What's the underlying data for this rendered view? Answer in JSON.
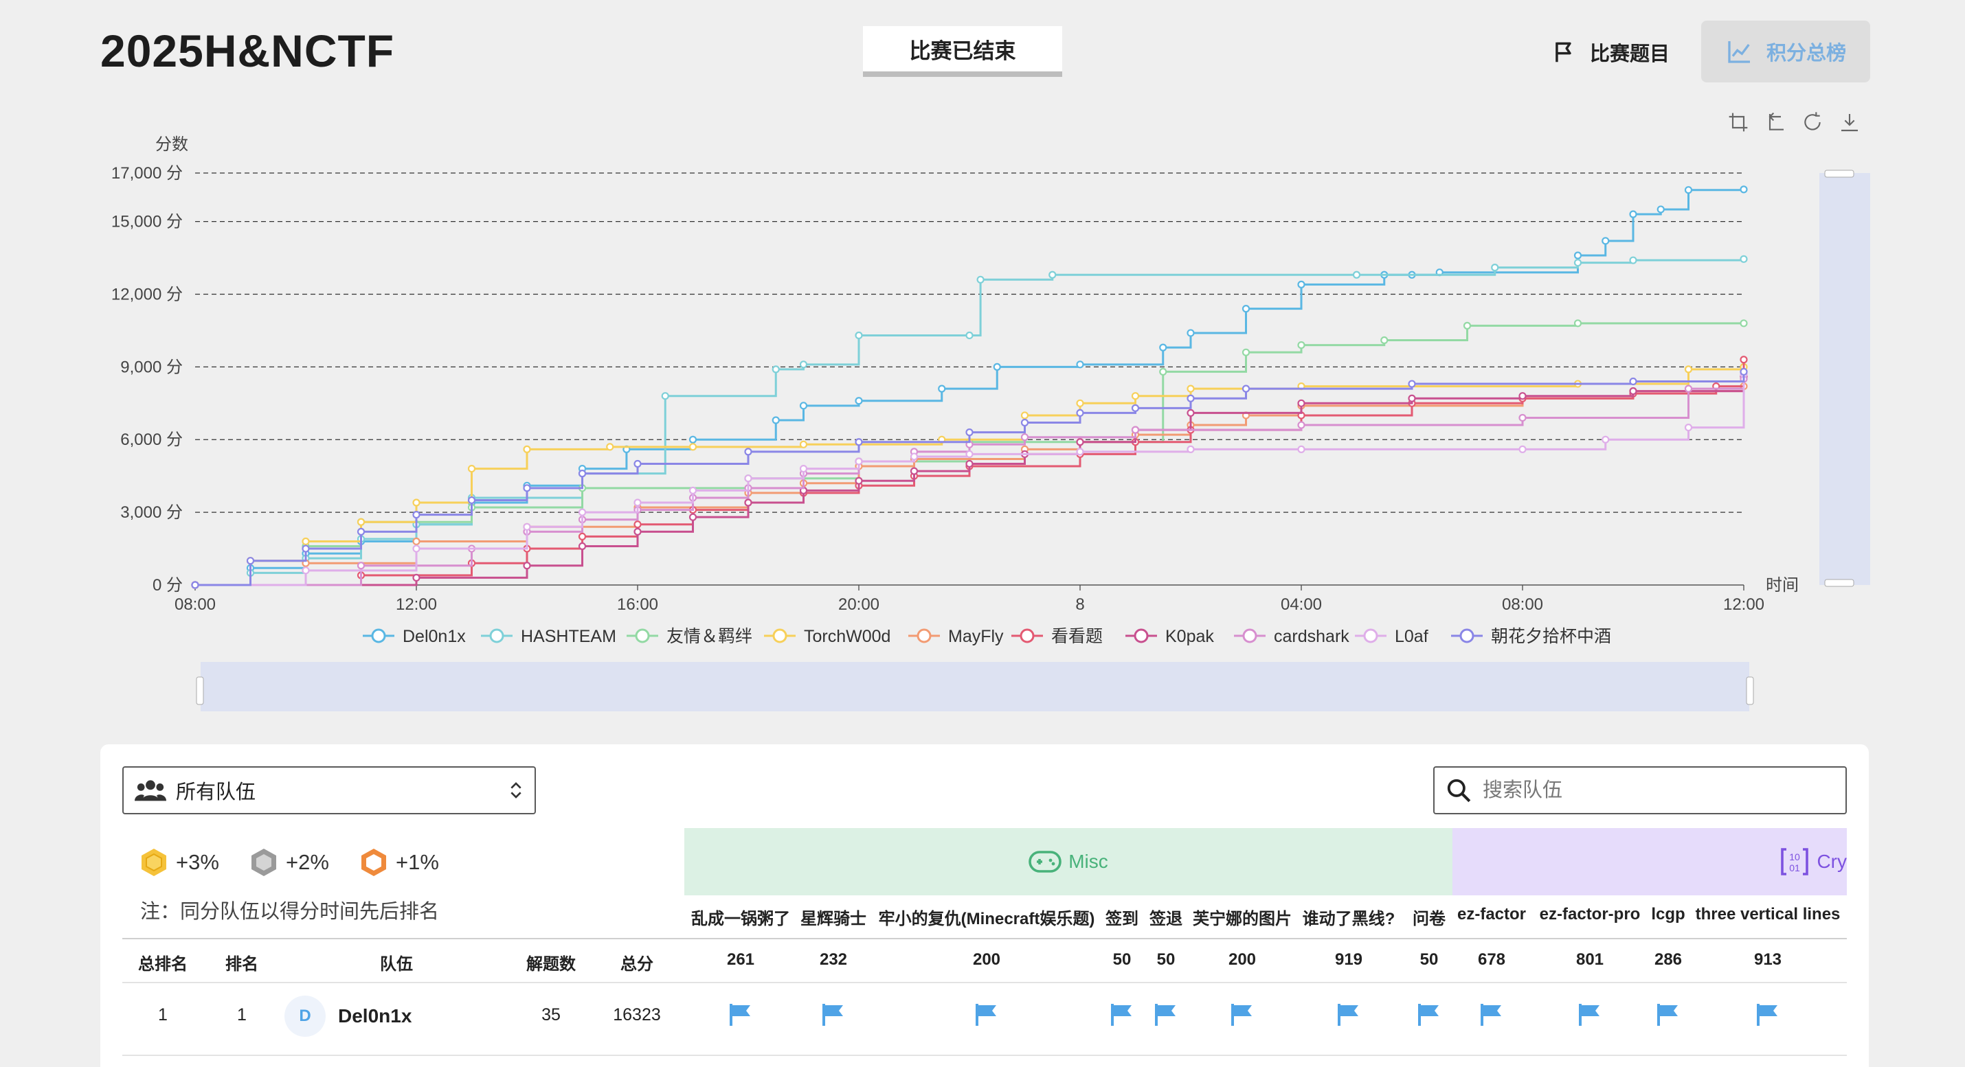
{
  "app": {
    "title": "2025H&NCTF",
    "status": "比赛已结束"
  },
  "nav": {
    "problems": "比赛题目",
    "scoreboard": "积分总榜"
  },
  "colors": {
    "accent": "#7cb0e0",
    "flag": "#4fa3e6",
    "misc_bg": "#dcf1e4",
    "crypto_bg": "#e6dcfb"
  },
  "chart_data": {
    "type": "line",
    "title": "",
    "ylabel": "分数",
    "xlabel": "时间",
    "y_ticks": [
      "0 分",
      "3,000 分",
      "6,000 分",
      "9,000 分",
      "12,000 分",
      "15,000 分",
      "17,000 分"
    ],
    "x_ticks": [
      "08:00",
      "12:00",
      "16:00",
      "20:00",
      "8",
      "04:00",
      "08:00",
      "12:00"
    ],
    "ylim": [
      0,
      17000
    ],
    "x_range_hours": [
      0,
      28
    ],
    "grid": true,
    "legend_position": "bottom",
    "series": [
      {
        "name": "Del0n1x",
        "color": "#5ab7e3",
        "x": [
          0,
          1,
          2,
          3,
          4,
          5,
          6,
          7,
          7.8,
          9,
          10.5,
          11,
          12,
          13.5,
          14.5,
          16,
          17.5,
          18,
          19,
          20,
          21.5,
          22,
          22.5,
          25,
          25.5,
          26,
          26.5,
          27,
          28
        ],
        "y": [
          0,
          700,
          1300,
          1800,
          2500,
          3400,
          4100,
          4800,
          5600,
          6000,
          6800,
          7400,
          7600,
          8100,
          9000,
          9100,
          9800,
          10400,
          11400,
          12400,
          12800,
          12800,
          12900,
          13600,
          14200,
          15300,
          15500,
          16300,
          16323
        ]
      },
      {
        "name": "HASHTEAM",
        "color": "#7ed0d8",
        "x": [
          0,
          1,
          2,
          3,
          4,
          5,
          7,
          8.5,
          10.5,
          11,
          12,
          14,
          14.2,
          15.5,
          21,
          23.5,
          25,
          26,
          28
        ],
        "y": [
          0,
          500,
          1100,
          1900,
          2500,
          3600,
          4600,
          7800,
          8900,
          9100,
          10300,
          10300,
          12600,
          12800,
          12800,
          13100,
          13300,
          13400,
          13450
        ]
      },
      {
        "name": "友情＆羁绊",
        "color": "#93d9a4",
        "x": [
          0,
          2,
          3,
          5,
          7,
          10,
          12,
          14,
          17.5,
          19,
          20,
          21.5,
          23,
          25,
          28
        ],
        "y": [
          0,
          1600,
          2600,
          3200,
          4000,
          4400,
          5100,
          5900,
          8800,
          9600,
          9900,
          10100,
          10700,
          10800,
          10800
        ]
      },
      {
        "name": "TorchW00d",
        "color": "#f7d05a",
        "x": [
          0,
          1,
          2,
          3,
          4,
          5,
          6,
          7.5,
          9,
          11,
          13.5,
          15,
          16,
          17,
          18,
          20,
          25,
          27,
          28
        ],
        "y": [
          0,
          1000,
          1800,
          2600,
          3400,
          4800,
          5600,
          5700,
          5700,
          5800,
          6000,
          7000,
          7500,
          7800,
          8100,
          8200,
          8300,
          8900,
          9000
        ]
      },
      {
        "name": "MayFly",
        "color": "#f29b73",
        "x": [
          0,
          2,
          4,
          6,
          8,
          10,
          11,
          12,
          13,
          15,
          16,
          17,
          18,
          19,
          20,
          24,
          26,
          28
        ],
        "y": [
          0,
          900,
          1800,
          2400,
          3200,
          3800,
          4200,
          4900,
          5200,
          5600,
          5900,
          6200,
          6600,
          7000,
          7400,
          7700,
          8000,
          8200
        ]
      },
      {
        "name": "看看题",
        "color": "#e35a72",
        "x": [
          0,
          3,
          5,
          6,
          7,
          8,
          9,
          10,
          11,
          12,
          13,
          14,
          16,
          17,
          18,
          20,
          22,
          24,
          26,
          27.5,
          28
        ],
        "y": [
          0,
          400,
          900,
          1500,
          2000,
          2500,
          3100,
          3400,
          3800,
          4100,
          4500,
          4900,
          5400,
          5900,
          6400,
          7000,
          7500,
          7700,
          7900,
          8200,
          9300
        ]
      },
      {
        "name": "K0pak",
        "color": "#c8508f",
        "x": [
          0,
          4,
          6,
          7,
          8,
          9,
          10,
          11,
          12,
          13,
          14,
          15,
          16,
          17,
          18,
          20,
          22,
          24,
          26,
          28
        ],
        "y": [
          0,
          300,
          800,
          1600,
          2200,
          2800,
          3400,
          3900,
          4300,
          4700,
          5000,
          5400,
          5900,
          6400,
          7100,
          7500,
          7700,
          7800,
          8000,
          8600
        ]
      },
      {
        "name": "cardshark",
        "color": "#d78fcf",
        "x": [
          0,
          3,
          5,
          6,
          7,
          8,
          9,
          10,
          11,
          12,
          13,
          14,
          15,
          17,
          20,
          24,
          27,
          28
        ],
        "y": [
          0,
          800,
          1500,
          2200,
          2700,
          3100,
          3600,
          4000,
          4600,
          5100,
          5500,
          5800,
          6100,
          6400,
          6600,
          6900,
          8100,
          8500
        ]
      },
      {
        "name": "L0af",
        "color": "#dfaee9",
        "x": [
          0,
          2,
          4,
          6,
          7,
          8,
          9,
          10,
          11,
          12,
          13,
          14,
          16,
          18,
          20,
          24,
          25.5,
          27,
          28
        ],
        "y": [
          0,
          600,
          1500,
          2400,
          3000,
          3400,
          3900,
          4400,
          4800,
          5100,
          5300,
          5400,
          5500,
          5600,
          5600,
          5600,
          6000,
          6500,
          8700
        ]
      },
      {
        "name": "朝花夕拾杯中酒",
        "color": "#8a86e6",
        "x": [
          0,
          1,
          2,
          3,
          4,
          5,
          6,
          7,
          8,
          10,
          12,
          14,
          15,
          16,
          17,
          18,
          19,
          22,
          26,
          28
        ],
        "y": [
          0,
          1000,
          1500,
          2200,
          2900,
          3500,
          4000,
          4600,
          5000,
          5500,
          5900,
          6300,
          6700,
          7100,
          7300,
          7700,
          8100,
          8300,
          8400,
          8800
        ]
      }
    ]
  },
  "filter": {
    "team_select": "所有队伍",
    "search_placeholder": "搜索队伍"
  },
  "bonus": [
    "+3%",
    "+2%",
    "+1%"
  ],
  "note": "注：同分队伍以得分时间先后排名",
  "categories": {
    "misc": "Misc",
    "crypto": "Cry"
  },
  "challenges": [
    {
      "name": "乱成一锅粥了",
      "score": "261"
    },
    {
      "name": "星辉骑士",
      "score": "232"
    },
    {
      "name": "牢小的复仇(Minecraft娱乐题)",
      "score": "200"
    },
    {
      "name": "签到",
      "score": "50"
    },
    {
      "name": "签退",
      "score": "50"
    },
    {
      "name": "芙宁娜的图片",
      "score": "200"
    },
    {
      "name": "谁动了黑线?",
      "score": "919"
    },
    {
      "name": "问卷",
      "score": "50"
    },
    {
      "name": "ez-factor",
      "score": "678"
    },
    {
      "name": "ez-factor-pro",
      "score": "801"
    },
    {
      "name": "lcgp",
      "score": "286"
    },
    {
      "name": "three vertical lines",
      "score": "913"
    }
  ],
  "table": {
    "headers": {
      "overall_rank": "总排名",
      "rank": "排名",
      "team": "队伍",
      "solves": "解题数",
      "total": "总分"
    },
    "rows": [
      {
        "overall_rank": "1",
        "rank": "1",
        "avatar": "D",
        "team": "Del0n1x",
        "solves": "35",
        "total": "16323"
      }
    ]
  }
}
